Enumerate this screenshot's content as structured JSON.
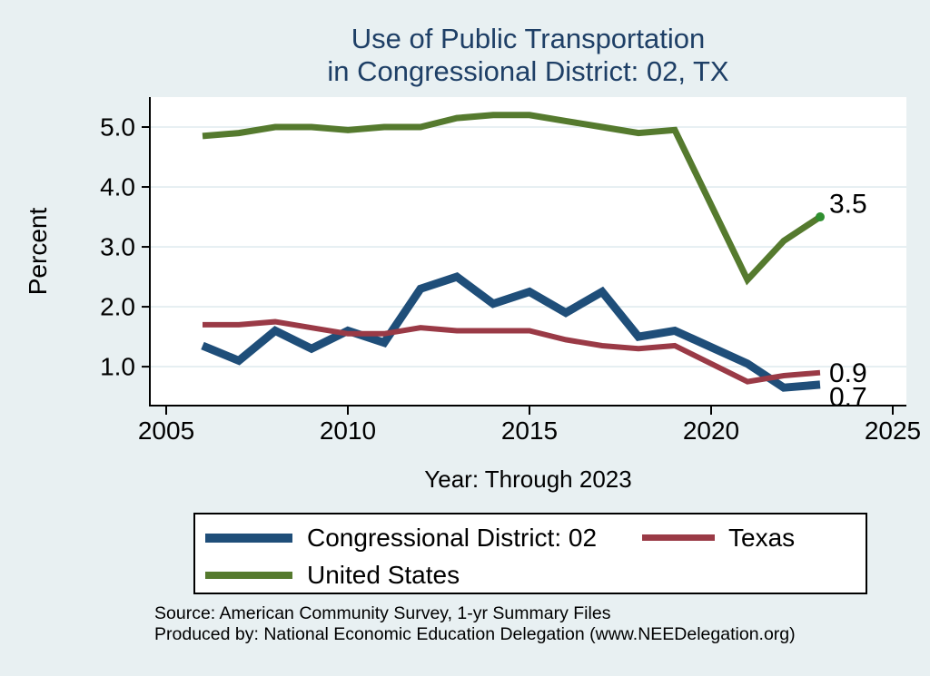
{
  "title": {
    "line1": "Use of Public Transportation",
    "line2": "in Congressional District: 02, TX"
  },
  "y_axis": {
    "label": "Percent",
    "tick_labels": [
      "1.0",
      "2.0",
      "3.0",
      "4.0",
      "5.0"
    ],
    "tick_values": [
      1,
      2,
      3,
      4,
      5
    ]
  },
  "x_axis": {
    "label": "Year: Through 2023",
    "tick_labels": [
      "2005",
      "2010",
      "2015",
      "2020",
      "2025"
    ],
    "tick_values": [
      2005,
      2010,
      2015,
      2020,
      2025
    ]
  },
  "chart_data": {
    "type": "line",
    "title": "Use of Public Transportation in Congressional District: 02, TX",
    "xlabel": "Year: Through 2023",
    "ylabel": "Percent",
    "xlim": [
      2004.55,
      2025.375
    ],
    "ylim": [
      0.35,
      5.5
    ],
    "grid": "horizontal",
    "grid_color": "#e0ecef",
    "x": [
      2006,
      2007,
      2008,
      2009,
      2010,
      2011,
      2012,
      2013,
      2014,
      2015,
      2016,
      2017,
      2018,
      2019,
      2021,
      2022,
      2023
    ],
    "series": [
      {
        "name": "Congressional District: 02",
        "color": "#1f4e79",
        "width": 9,
        "values": [
          1.35,
          1.1,
          1.6,
          1.3,
          1.6,
          1.4,
          2.3,
          2.5,
          2.05,
          2.25,
          1.9,
          2.25,
          1.5,
          1.6,
          1.05,
          0.65,
          0.7
        ],
        "end_label": "0.7",
        "end_marker": false
      },
      {
        "name": "Texas",
        "color": "#9a3a46",
        "width": 6,
        "values": [
          1.7,
          1.7,
          1.75,
          1.65,
          1.55,
          1.55,
          1.65,
          1.6,
          1.6,
          1.6,
          1.45,
          1.35,
          1.3,
          1.35,
          0.75,
          0.85,
          0.9
        ],
        "end_label": "0.9",
        "end_marker": false
      },
      {
        "name": "United States",
        "color": "#557a2e",
        "width": 7,
        "values": [
          4.85,
          4.9,
          5.0,
          5.0,
          4.95,
          5.0,
          5.0,
          5.15,
          5.2,
          5.2,
          5.1,
          5.0,
          4.9,
          4.95,
          2.45,
          3.1,
          3.5
        ],
        "end_label": "3.5",
        "end_marker": true,
        "marker_color": "#2f8f2f"
      }
    ],
    "legend_position": "bottom"
  },
  "legend": {
    "items": [
      {
        "label": "Congressional District: 02",
        "color": "#1f4e79"
      },
      {
        "label": "Texas",
        "color": "#9a3a46"
      },
      {
        "label": "United States",
        "color": "#557a2e"
      }
    ]
  },
  "source": {
    "line1": "Source: American Community Survey, 1-yr Summary Files",
    "line2": "Produced by: National Economic Education Delegation (www.NEEDelegation.org)"
  },
  "colors": {
    "background": "#e8f0f2",
    "plot_background": "#ffffff",
    "title_text": "#1e3f66",
    "axis": "#000000"
  }
}
